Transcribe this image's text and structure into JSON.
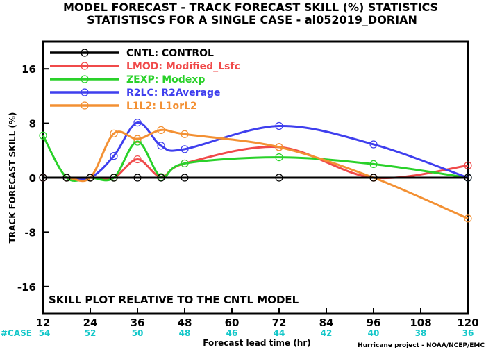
{
  "chart_data": {
    "type": "line",
    "title": "MODEL FORECAST - TRACK FORECAST SKILL (%) STATISTICS",
    "subtitle": "STATISTISCS FOR A SINGLE CASE - al052019_DORIAN",
    "xlabel": "Forecast lead time (hr)",
    "ylabel": "TRACK FORECAST SKILL (%)",
    "xlim": [
      12,
      120
    ],
    "ylim": [
      -20,
      20
    ],
    "x_ticks": [
      12,
      24,
      36,
      48,
      60,
      72,
      84,
      96,
      108,
      120
    ],
    "y_ticks": [
      -16,
      -8,
      0,
      8,
      16
    ],
    "case_label": "#CASE",
    "case_hours": [
      12,
      24,
      36,
      48,
      60,
      72,
      84,
      96,
      108,
      120
    ],
    "case_counts": [
      "54",
      "52",
      "50",
      "48",
      "46",
      "44",
      "42",
      "40",
      "38",
      "36"
    ],
    "annotation": "SKILL PLOT RELATIVE TO THE CNTL MODEL",
    "credit": "Hurricane project - NOAA/NCEP/EMC",
    "grid": false,
    "legend_position": "top-left",
    "series": [
      {
        "name": "CNTL: CONTROL",
        "color": "#000000",
        "x": [
          12,
          18,
          24,
          30,
          36,
          42,
          48,
          72,
          96,
          120
        ],
        "y": [
          0,
          0,
          0,
          0,
          0,
          0,
          0,
          0,
          0,
          0
        ]
      },
      {
        "name": "LMOD: Modified_Lsfc",
        "color": "#f04a4a",
        "x": [
          12,
          18,
          24,
          30,
          36,
          42,
          48,
          72,
          96,
          120
        ],
        "y": [
          0,
          0,
          0,
          0,
          2.7,
          0.1,
          2.1,
          4.5,
          0,
          1.8
        ]
      },
      {
        "name": "ZEXP: Modexp",
        "color": "#2ad12a",
        "x": [
          12,
          18,
          24,
          30,
          36,
          42,
          48,
          72,
          96,
          120
        ],
        "y": [
          6.2,
          0,
          0,
          0,
          5.3,
          0.1,
          2.1,
          3.0,
          2.0,
          0
        ]
      },
      {
        "name": "R2LC: R2Average",
        "color": "#3f3fee",
        "x": [
          12,
          18,
          24,
          30,
          36,
          42,
          48,
          72,
          96,
          120
        ],
        "y": [
          0,
          0,
          0,
          3.2,
          8.1,
          4.7,
          4.2,
          7.6,
          4.9,
          0
        ]
      },
      {
        "name": "L1L2: L1orL2",
        "color": "#f39033",
        "x": [
          12,
          18,
          24,
          30,
          36,
          42,
          48,
          72,
          96,
          120
        ],
        "y": [
          0,
          0,
          0,
          6.5,
          5.7,
          7.0,
          6.4,
          4.5,
          0,
          -6
        ]
      }
    ]
  }
}
